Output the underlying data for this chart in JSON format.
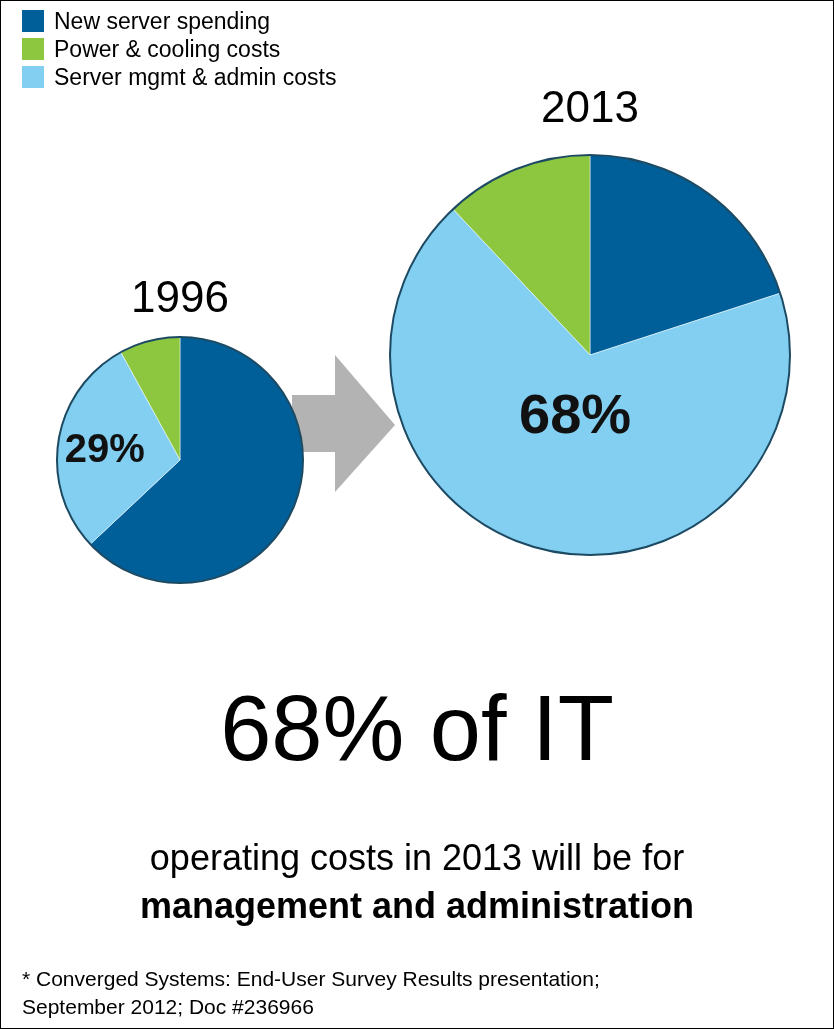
{
  "chart_data": [
    {
      "type": "pie",
      "title": "1996",
      "categories": [
        "New server spending",
        "Power & cooling costs",
        "Server mgmt & admin costs"
      ],
      "values": [
        63,
        8,
        29
      ],
      "colors": [
        "#005f99",
        "#8dc63f",
        "#82cff2"
      ],
      "value_labels": [
        null,
        null,
        "29%"
      ],
      "legend": "top left"
    },
    {
      "type": "pie",
      "title": "2013",
      "categories": [
        null,
        null,
        null
      ],
      "values": [
        20,
        12,
        68
      ],
      "colors": [
        "#005f99",
        "#8dc63f",
        "#82cff2"
      ],
      "value_labels": [
        null,
        null,
        "68%"
      ],
      "annotations": [
        "68% of IT",
        "operating costs in 2013 will be for",
        "management and administration",
        "* Converged Systems: End-User Survey Results presentation; September 2012; Doc #236966"
      ]
    }
  ]
}
